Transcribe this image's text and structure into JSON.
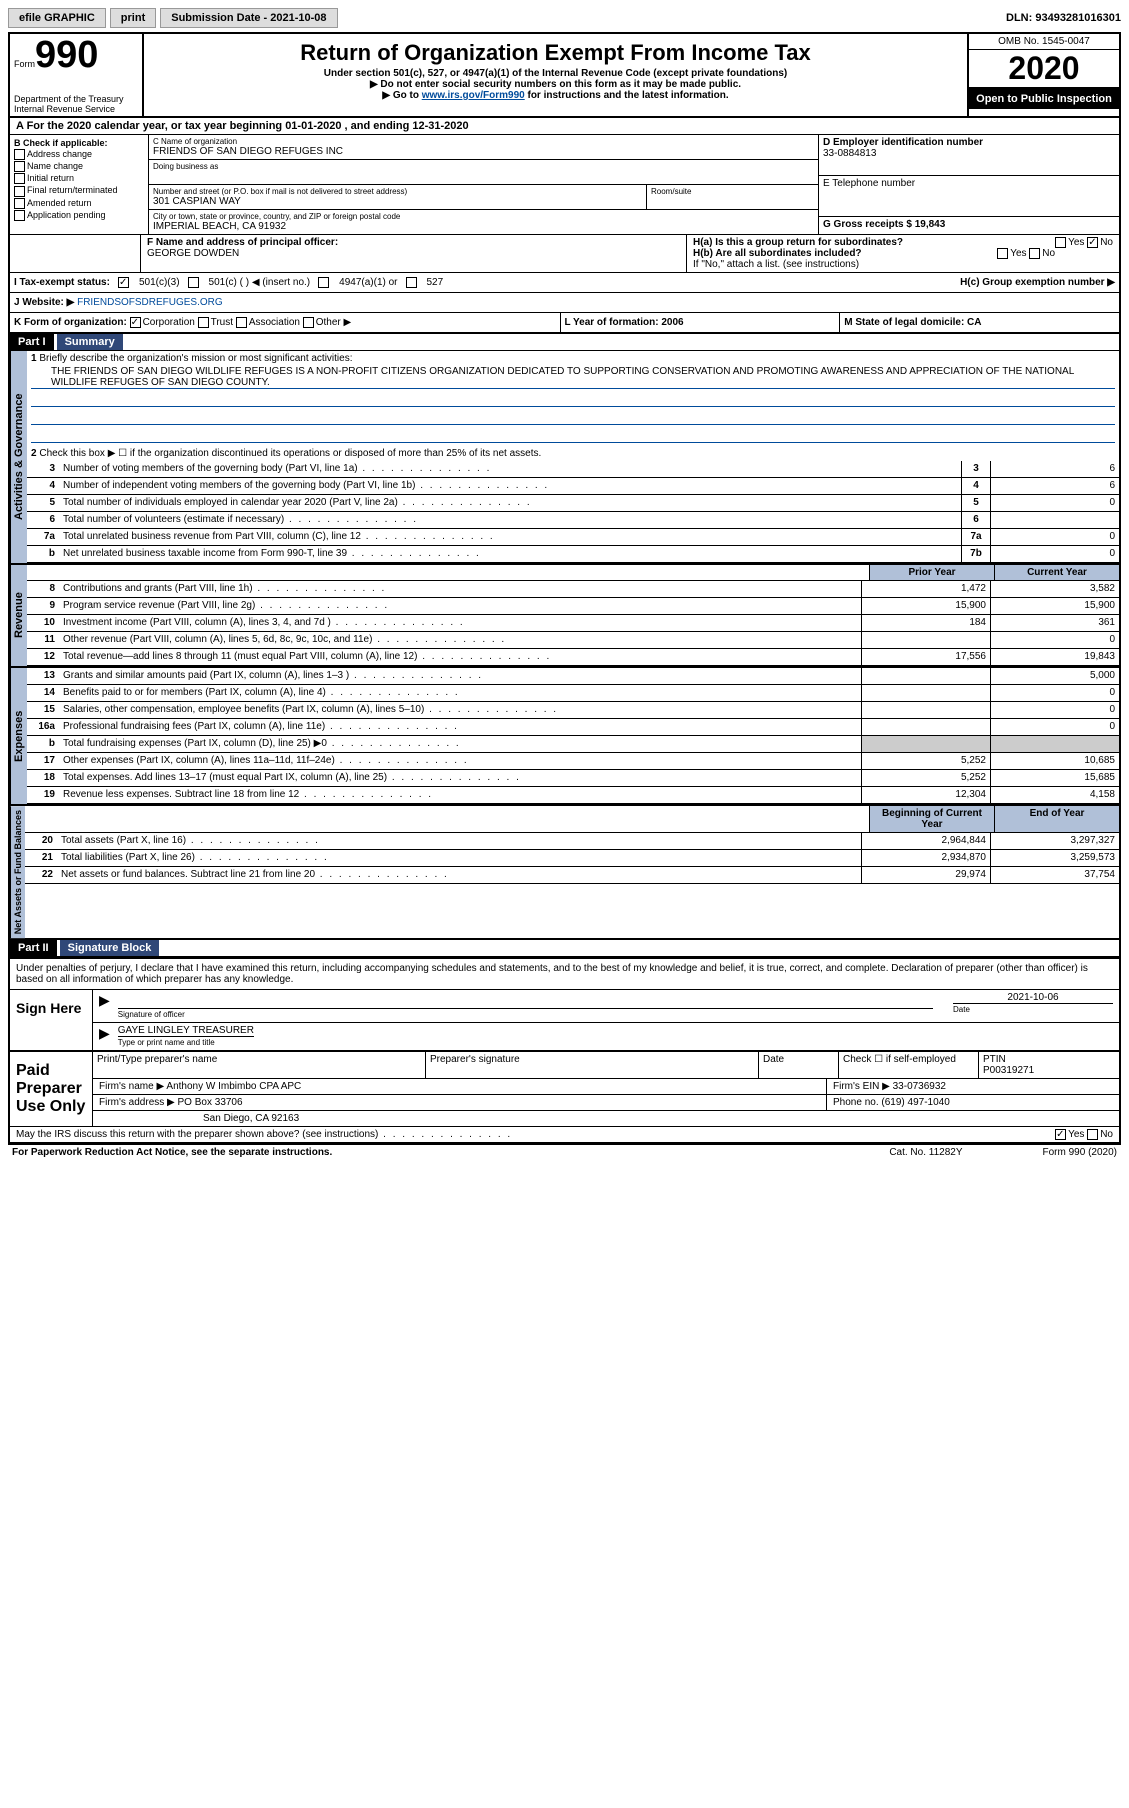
{
  "header": {
    "efile": "efile GRAPHIC",
    "print": "print",
    "submission_label": "Submission Date - 2021-10-08",
    "dln": "DLN: 93493281016301"
  },
  "form_id": {
    "form": "Form",
    "num": "990"
  },
  "title": "Return of Organization Exempt From Income Tax",
  "subtitle1": "Under section 501(c), 527, or 4947(a)(1) of the Internal Revenue Code (except private foundations)",
  "subtitle2": "▶ Do not enter social security numbers on this form as it may be made public.",
  "subtitle3a": "▶ Go to ",
  "subtitle3_link": "www.irs.gov/Form990",
  "subtitle3b": " for instructions and the latest information.",
  "omb": "OMB No. 1545-0047",
  "year": "2020",
  "inspect": "Open to Public Inspection",
  "dept": "Department of the Treasury Internal Revenue Service",
  "line_a": "A For the 2020 calendar year, or tax year beginning 01-01-2020    , and ending 12-31-2020",
  "b": {
    "label": "B Check if applicable:",
    "items": [
      "Address change",
      "Name change",
      "Initial return",
      "Final return/terminated",
      "Amended return",
      "Application pending"
    ]
  },
  "c": {
    "name_lbl": "C Name of organization",
    "name": "FRIENDS OF SAN DIEGO REFUGES INC",
    "dba_lbl": "Doing business as",
    "addr_lbl": "Number and street (or P.O. box if mail is not delivered to street address)",
    "room_lbl": "Room/suite",
    "addr": "301 CASPIAN WAY",
    "city_lbl": "City or town, state or province, country, and ZIP or foreign postal code",
    "city": "IMPERIAL BEACH, CA  91932"
  },
  "d": {
    "lbl": "D Employer identification number",
    "val": "33-0884813"
  },
  "e": {
    "lbl": "E Telephone number"
  },
  "g": {
    "lbl": "G Gross receipts $ 19,843"
  },
  "f": {
    "lbl": "F  Name and address of principal officer:",
    "val": "GEORGE DOWDEN"
  },
  "h": {
    "a": "H(a)  Is this a group return for subordinates?",
    "b": "H(b)  Are all subordinates included?",
    "b2": "If \"No,\" attach a list. (see instructions)",
    "c": "H(c)  Group exemption number ▶",
    "yes": "Yes",
    "no": "No"
  },
  "i": {
    "lbl": "I    Tax-exempt status:",
    "o1": "501(c)(3)",
    "o2": "501(c) (  ) ◀ (insert no.)",
    "o3": "4947(a)(1) or",
    "o4": "527"
  },
  "j": {
    "lbl": "J    Website: ▶",
    "val": "FRIENDSOFSDREFUGES.ORG"
  },
  "k": {
    "lbl": "K Form of organization:",
    "o1": "Corporation",
    "o2": "Trust",
    "o3": "Association",
    "o4": "Other ▶"
  },
  "l": {
    "lbl": "L Year of formation: 2006"
  },
  "m": {
    "lbl": "M State of legal domicile: CA"
  },
  "parts": {
    "p1": "Part I",
    "p1t": "Summary",
    "p2": "Part II",
    "p2t": "Signature Block"
  },
  "p1": {
    "l1": "Briefly describe the organization's mission or most significant activities:",
    "l1v": "THE FRIENDS OF SAN DIEGO WILDLIFE REFUGES IS A NON-PROFIT CITIZENS ORGANIZATION DEDICATED TO SUPPORTING CONSERVATION AND PROMOTING AWARENESS AND APPRECIATION OF THE NATIONAL WILDLIFE REFUGES OF SAN DIEGO COUNTY.",
    "l2": "Check this box ▶ ☐  if the organization discontinued its operations or disposed of more than 25% of its net assets.",
    "rows_ag": [
      {
        "n": "3",
        "t": "Number of voting members of the governing body (Part VI, line 1a)",
        "box": "3",
        "v": "6"
      },
      {
        "n": "4",
        "t": "Number of independent voting members of the governing body (Part VI, line 1b)",
        "box": "4",
        "v": "6"
      },
      {
        "n": "5",
        "t": "Total number of individuals employed in calendar year 2020 (Part V, line 2a)",
        "box": "5",
        "v": "0"
      },
      {
        "n": "6",
        "t": "Total number of volunteers (estimate if necessary)",
        "box": "6",
        "v": ""
      },
      {
        "n": "7a",
        "t": "Total unrelated business revenue from Part VIII, column (C), line 12",
        "box": "7a",
        "v": "0"
      },
      {
        "n": "b",
        "t": "Net unrelated business taxable income from Form 990-T, line 39",
        "box": "7b",
        "v": "0"
      }
    ],
    "hdr_prior": "Prior Year",
    "hdr_curr": "Current Year",
    "rows_rev": [
      {
        "n": "8",
        "t": "Contributions and grants (Part VIII, line 1h)",
        "p": "1,472",
        "c": "3,582"
      },
      {
        "n": "9",
        "t": "Program service revenue (Part VIII, line 2g)",
        "p": "15,900",
        "c": "15,900"
      },
      {
        "n": "10",
        "t": "Investment income (Part VIII, column (A), lines 3, 4, and 7d )",
        "p": "184",
        "c": "361"
      },
      {
        "n": "11",
        "t": "Other revenue (Part VIII, column (A), lines 5, 6d, 8c, 9c, 10c, and 11e)",
        "p": "",
        "c": "0"
      },
      {
        "n": "12",
        "t": "Total revenue—add lines 8 through 11 (must equal Part VIII, column (A), line 12)",
        "p": "17,556",
        "c": "19,843"
      }
    ],
    "rows_exp": [
      {
        "n": "13",
        "t": "Grants and similar amounts paid (Part IX, column (A), lines 1–3 )",
        "p": "",
        "c": "5,000"
      },
      {
        "n": "14",
        "t": "Benefits paid to or for members (Part IX, column (A), line 4)",
        "p": "",
        "c": "0"
      },
      {
        "n": "15",
        "t": "Salaries, other compensation, employee benefits (Part IX, column (A), lines 5–10)",
        "p": "",
        "c": "0"
      },
      {
        "n": "16a",
        "t": "Professional fundraising fees (Part IX, column (A), line 11e)",
        "p": "",
        "c": "0"
      },
      {
        "n": "b",
        "t": "Total fundraising expenses (Part IX, column (D), line 25) ▶0",
        "p": "gray",
        "c": "gray"
      },
      {
        "n": "17",
        "t": "Other expenses (Part IX, column (A), lines 11a–11d, 11f–24e)",
        "p": "5,252",
        "c": "10,685"
      },
      {
        "n": "18",
        "t": "Total expenses. Add lines 13–17 (must equal Part IX, column (A), line 25)",
        "p": "5,252",
        "c": "15,685"
      },
      {
        "n": "19",
        "t": "Revenue less expenses. Subtract line 18 from line 12",
        "p": "12,304",
        "c": "4,158"
      }
    ],
    "hdr_beg": "Beginning of Current Year",
    "hdr_end": "End of Year",
    "rows_na": [
      {
        "n": "20",
        "t": "Total assets (Part X, line 16)",
        "p": "2,964,844",
        "c": "3,297,327"
      },
      {
        "n": "21",
        "t": "Total liabilities (Part X, line 26)",
        "p": "2,934,870",
        "c": "3,259,573"
      },
      {
        "n": "22",
        "t": "Net assets or fund balances. Subtract line 21 from line 20",
        "p": "29,974",
        "c": "37,754"
      }
    ],
    "tabs": {
      "ag": "Activities & Governance",
      "rev": "Revenue",
      "exp": "Expenses",
      "na": "Net Assets or Fund Balances"
    }
  },
  "sig": {
    "decl": "Under penalties of perjury, I declare that I have examined this return, including accompanying schedules and statements, and to the best of my knowledge and belief, it is true, correct, and complete. Declaration of preparer (other than officer) is based on all information of which preparer has any knowledge.",
    "sign_here": "Sign Here",
    "sig_off": "Signature of officer",
    "date_lbl": "Date",
    "date": "2021-10-06",
    "name": "GAYE LINGLEY TREASURER",
    "name_lbl": "Type or print name and title",
    "paid": "Paid Preparer Use Only",
    "prep_name": "Print/Type preparer's name",
    "prep_sig": "Preparer's signature",
    "prep_date": "Date",
    "prep_check": "Check ☐ if self-employed",
    "ptin_lbl": "PTIN",
    "ptin": "P00319271",
    "firm_name_lbl": "Firm's name    ▶",
    "firm_name": "Anthony W Imbimbo CPA APC",
    "firm_ein_lbl": "Firm's EIN ▶",
    "firm_ein": "33-0736932",
    "firm_addr_lbl": "Firm's address ▶",
    "firm_addr": "PO Box 33706",
    "firm_city": "San Diego, CA  92163",
    "phone_lbl": "Phone no.",
    "phone": "(619) 497-1040",
    "discuss": "May the IRS discuss this return with the preparer shown above? (see instructions)",
    "yes": "Yes",
    "no": "No"
  },
  "footer": {
    "l": "For Paperwork Reduction Act Notice, see the separate instructions.",
    "c": "Cat. No. 11282Y",
    "r": "Form 990 (2020)"
  }
}
